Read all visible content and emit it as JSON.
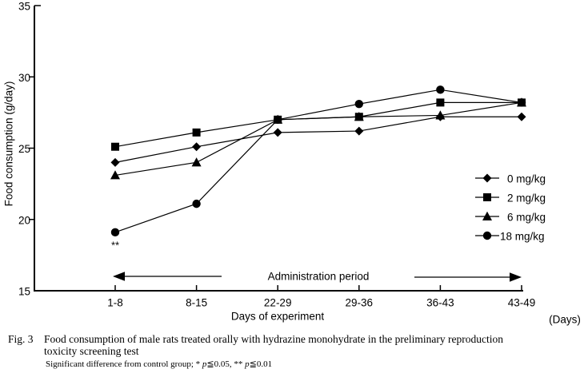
{
  "chart_data": {
    "type": "line",
    "categories": [
      "1-8",
      "8-15",
      "22-29",
      "29-36",
      "36-43",
      "43-49"
    ],
    "xlabel": "Days of experiment",
    "xunit": "(Days)",
    "ylabel": "Food consumption (g/day)",
    "ylim": [
      15,
      35
    ],
    "yticks": [
      15,
      20,
      25,
      30,
      35
    ],
    "grid": false,
    "legend_position": "right-middle",
    "series": [
      {
        "name": "0 mg/kg",
        "marker": "diamond",
        "color": "#000000",
        "values": [
          24.0,
          25.1,
          26.1,
          26.2,
          27.2,
          27.2
        ]
      },
      {
        "name": "2 mg/kg",
        "marker": "square",
        "color": "#000000",
        "values": [
          25.1,
          26.1,
          27.0,
          27.2,
          28.2,
          28.2
        ]
      },
      {
        "name": "6 mg/kg",
        "marker": "triangle",
        "color": "#000000",
        "values": [
          23.1,
          24.0,
          27.0,
          27.2,
          27.3,
          28.2
        ]
      },
      {
        "name": "18 mg/kg",
        "marker": "circle",
        "color": "#000000",
        "values": [
          19.1,
          21.1,
          27.0,
          28.1,
          29.1,
          28.2
        ]
      }
    ],
    "annotations": [
      {
        "text": "**",
        "series": "18 mg/kg",
        "category": "1-8",
        "position": "below"
      }
    ],
    "administration_period": {
      "label": "Administration period",
      "left_arrow": true,
      "right_arrow": true
    }
  },
  "caption": {
    "fig_label": "Fig. 3",
    "line1": "Food consumption of male rats treated orally with hydrazine monohydrate in the preliminary reproduction",
    "line2": "toxicity screening test",
    "footnote": "Significant difference from control group; * p≦0.05, ** p≦0.01"
  },
  "colors": {
    "foreground": "#000000",
    "background": "#ffffff"
  }
}
